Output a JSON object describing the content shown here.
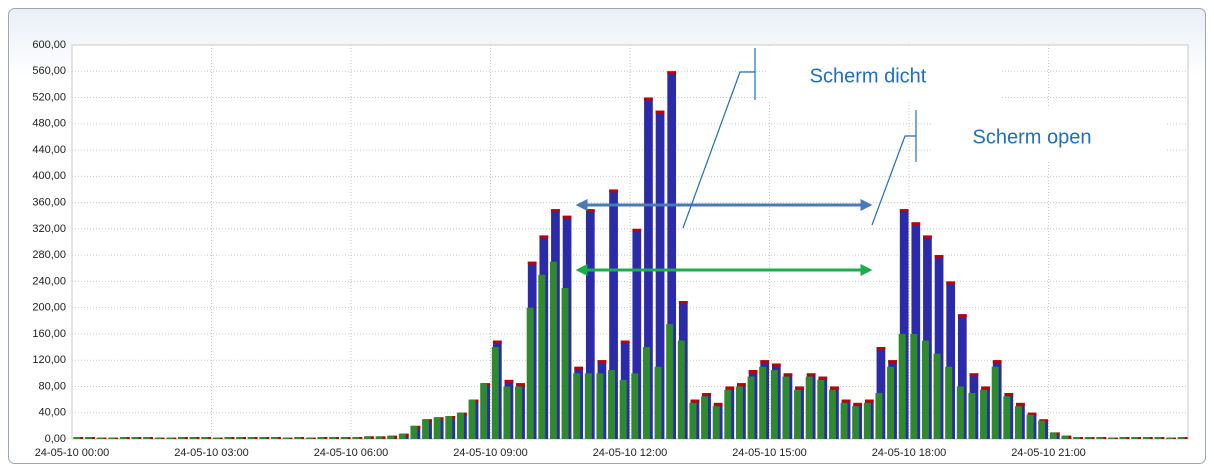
{
  "chart_data": {
    "type": "bar",
    "x": [
      0,
      0.25,
      0.5,
      0.75,
      1,
      1.25,
      1.5,
      1.75,
      2,
      2.25,
      2.5,
      2.75,
      3,
      3.25,
      3.5,
      3.75,
      4,
      4.25,
      4.5,
      4.75,
      5,
      5.25,
      5.5,
      5.75,
      6,
      6.25,
      6.5,
      6.75,
      7,
      7.25,
      7.5,
      7.75,
      8,
      8.25,
      8.5,
      8.75,
      9,
      9.25,
      9.5,
      9.75,
      10,
      10.25,
      10.5,
      10.75,
      11,
      11.25,
      11.5,
      11.75,
      12,
      12.25,
      12.5,
      12.75,
      13,
      13.25,
      13.5,
      13.75,
      14,
      14.25,
      14.5,
      14.75,
      15,
      15.25,
      15.5,
      15.75,
      16,
      16.25,
      16.5,
      16.75,
      17,
      17.25,
      17.5,
      17.75,
      18,
      18.25,
      18.5,
      18.75,
      19,
      19.25,
      19.5,
      19.75,
      20,
      20.25,
      20.5,
      20.75,
      21,
      21.25,
      21.5,
      21.75,
      22,
      22.25,
      22.5,
      22.75,
      23,
      23.25,
      23.5,
      23.75
    ],
    "series": [
      {
        "color": "#2b2aa8",
        "edge_color": "#c00000",
        "values": [
          3,
          3,
          2,
          2,
          3,
          3,
          3,
          2,
          2,
          3,
          3,
          3,
          2,
          3,
          3,
          3,
          3,
          3,
          2,
          3,
          2,
          3,
          3,
          3,
          3,
          4,
          4,
          5,
          8,
          20,
          30,
          33,
          35,
          40,
          60,
          85,
          150,
          90,
          85,
          270,
          310,
          350,
          340,
          110,
          350,
          120,
          380,
          150,
          320,
          520,
          500,
          560,
          210,
          60,
          70,
          55,
          80,
          85,
          105,
          120,
          115,
          100,
          80,
          100,
          95,
          80,
          60,
          55,
          60,
          140,
          120,
          350,
          330,
          310,
          280,
          240,
          190,
          100,
          80,
          120,
          70,
          55,
          40,
          30,
          10,
          5,
          3,
          3,
          3,
          2,
          3,
          3,
          3,
          3,
          2,
          3
        ]
      },
      {
        "color": "#2f8a2f",
        "values": [
          3,
          3,
          2,
          2,
          3,
          3,
          3,
          2,
          2,
          3,
          3,
          3,
          2,
          3,
          3,
          3,
          3,
          3,
          2,
          3,
          2,
          3,
          3,
          3,
          3,
          4,
          4,
          5,
          8,
          20,
          30,
          33,
          35,
          40,
          60,
          85,
          140,
          80,
          80,
          200,
          250,
          270,
          230,
          100,
          100,
          100,
          105,
          90,
          100,
          140,
          110,
          175,
          150,
          55,
          65,
          50,
          75,
          80,
          95,
          110,
          105,
          95,
          75,
          95,
          90,
          75,
          55,
          50,
          55,
          70,
          110,
          160,
          160,
          150,
          130,
          110,
          80,
          70,
          75,
          110,
          65,
          50,
          37,
          28,
          10,
          5,
          3,
          3,
          3,
          2,
          3,
          3,
          3,
          3,
          2,
          3
        ]
      }
    ],
    "xlim": [
      0,
      24
    ],
    "xticks": [
      {
        "value": 0,
        "label": "24-05-10 00:00"
      },
      {
        "value": 3,
        "label": "24-05-10 03:00"
      },
      {
        "value": 6,
        "label": "24-05-10 06:00"
      },
      {
        "value": 9,
        "label": "24-05-10 09:00"
      },
      {
        "value": 12,
        "label": "24-05-10 12:00"
      },
      {
        "value": 15,
        "label": "24-05-10 15:00"
      },
      {
        "value": 18,
        "label": "24-05-10 18:00"
      },
      {
        "value": 21,
        "label": "24-05-10 21:00"
      }
    ],
    "ylim": [
      0,
      600
    ],
    "yticks": [
      {
        "value": 0,
        "label": "0,00"
      },
      {
        "value": 40,
        "label": "40,00"
      },
      {
        "value": 80,
        "label": "80,00"
      },
      {
        "value": 120,
        "label": "120,00"
      },
      {
        "value": 160,
        "label": "160,00"
      },
      {
        "value": 200,
        "label": "200,00"
      },
      {
        "value": 240,
        "label": "240,00"
      },
      {
        "value": 280,
        "label": "280,00"
      },
      {
        "value": 320,
        "label": "320,00"
      },
      {
        "value": 360,
        "label": "360,00"
      },
      {
        "value": 400,
        "label": "400,00"
      },
      {
        "value": 440,
        "label": "440,00"
      },
      {
        "value": 480,
        "label": "480,00"
      },
      {
        "value": 520,
        "label": "520,00"
      },
      {
        "value": 560,
        "label": "560,00"
      },
      {
        "value": 600,
        "label": "600,00"
      }
    ],
    "grid": true,
    "annotations": [
      "Scherm dicht",
      "Scherm open"
    ]
  }
}
